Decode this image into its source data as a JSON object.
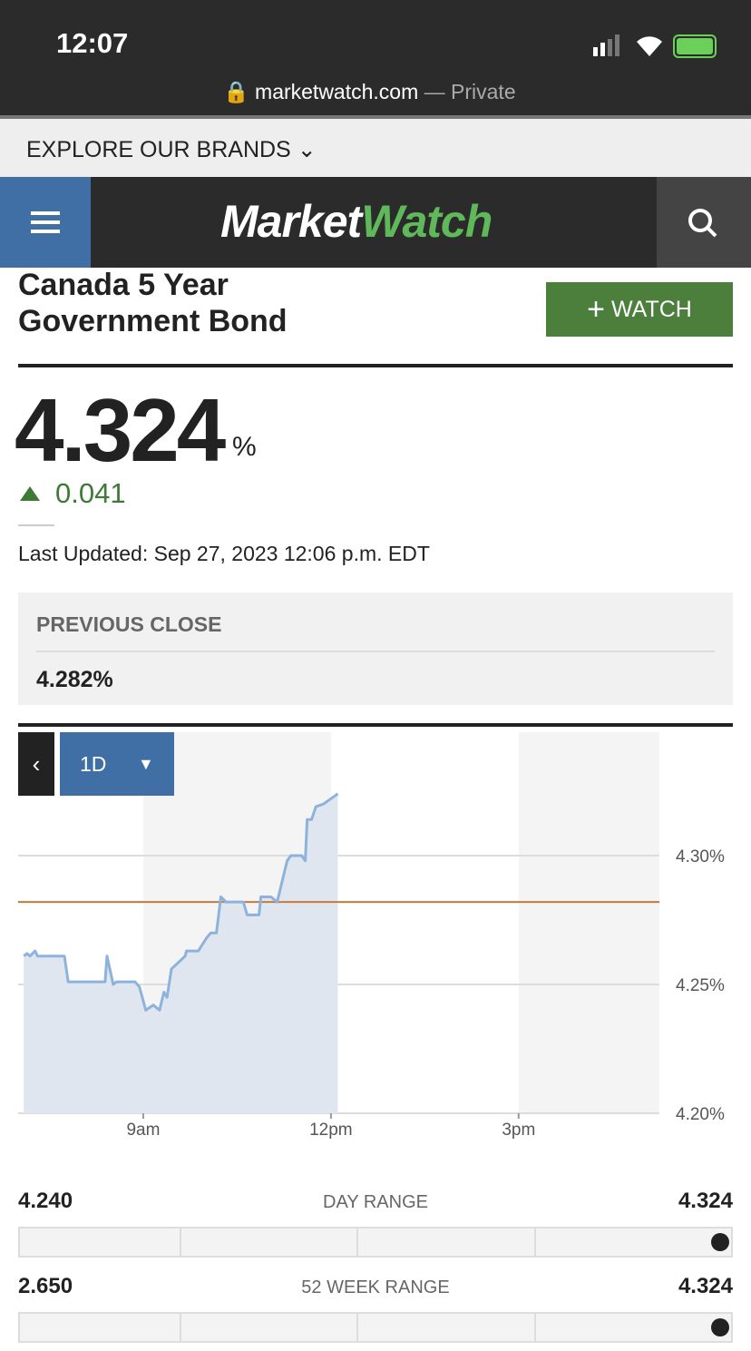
{
  "status_bar": {
    "time": "12:07",
    "url": "marketwatch.com",
    "private": "— Private"
  },
  "brands_bar": {
    "label": "EXPLORE OUR BRANDS"
  },
  "header": {
    "logo_market": "Market",
    "logo_watch": "Watch"
  },
  "quote": {
    "name_line1": "Canada 5 Year",
    "name_line2": "Government Bond",
    "watch_button": "WATCH",
    "price": "4.324",
    "unit": "%",
    "change": "0.041",
    "last_updated": "Last Updated: Sep 27, 2023 12:06 p.m. EDT"
  },
  "previous_close": {
    "label": "PREVIOUS CLOSE",
    "value": "4.282%"
  },
  "chart_data": {
    "type": "line",
    "period": "1D",
    "x": [
      7.09,
      7.14,
      7.19,
      7.27,
      7.31,
      7.74,
      7.8,
      8.39,
      8.42,
      8.52,
      8.57,
      8.87,
      8.94,
      9.04,
      9.16,
      9.26,
      9.33,
      9.38,
      9.45,
      9.67,
      9.69,
      9.88,
      10.01,
      10.08,
      10.17,
      10.24,
      10.32,
      10.6,
      10.66,
      10.85,
      10.88,
      11.04,
      11.14,
      11.3,
      11.36,
      11.53,
      11.59,
      11.62,
      11.69,
      11.76,
      11.88,
      12.11
    ],
    "series": [
      {
        "color": "#8db3dd",
        "fill": "#dfe6ef",
        "values": [
          4.261,
          4.262,
          4.261,
          4.263,
          4.261,
          4.261,
          4.251,
          4.251,
          4.261,
          4.25,
          4.251,
          4.251,
          4.249,
          4.24,
          4.242,
          4.24,
          4.247,
          4.245,
          4.256,
          4.261,
          4.263,
          4.263,
          4.268,
          4.27,
          4.27,
          4.284,
          4.282,
          4.282,
          4.277,
          4.277,
          4.284,
          4.284,
          4.282,
          4.298,
          4.3,
          4.3,
          4.298,
          4.314,
          4.314,
          4.319,
          4.32,
          4.324
        ]
      }
    ],
    "reference_line": {
      "value": 4.282,
      "color": "#c8783a"
    },
    "xlim": [
      7,
      17.25
    ],
    "xticks": [
      {
        "value": 9,
        "label": "9am"
      },
      {
        "value": 12,
        "label": "12pm"
      },
      {
        "value": 15,
        "label": "3pm"
      }
    ],
    "ylim": [
      4.2,
      4.35
    ],
    "yticks": [
      {
        "value": 4.2,
        "label": "4.20%"
      },
      {
        "value": 4.25,
        "label": "4.25%"
      },
      {
        "value": 4.3,
        "label": "4.30%"
      }
    ],
    "grid": true
  },
  "ranges": [
    {
      "low": "4.240",
      "label": "DAY RANGE",
      "high": "4.324"
    },
    {
      "low": "2.650",
      "label": "52 WEEK RANGE",
      "high": "4.324"
    }
  ]
}
